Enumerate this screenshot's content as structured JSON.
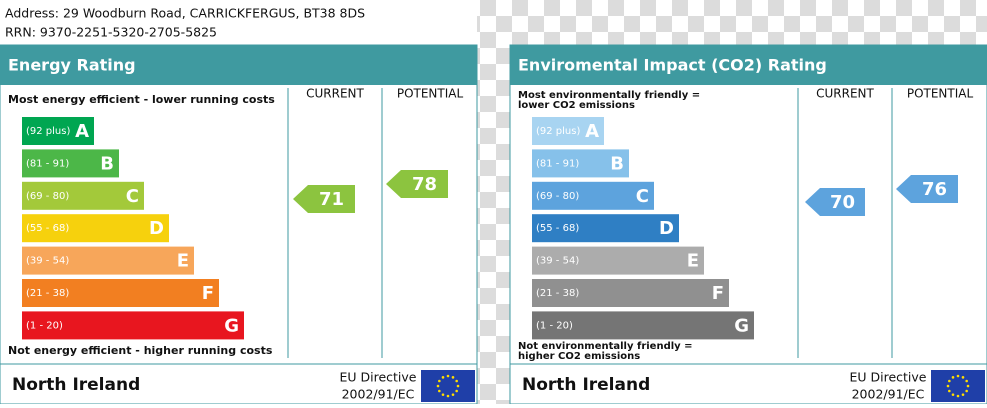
{
  "header": {
    "address": "Address: 29 Woodburn Road, CARRICKFERGUS, BT38 8DS",
    "rrn": "RRN: 9370-2251-5320-2705-5825"
  },
  "panels": [
    {
      "title": "Energy Rating",
      "top_label": [
        "Most energy efficient - lower running costs"
      ],
      "bottom_label": [
        "Not energy efficient - higher running costs"
      ],
      "current_heading": "CURRENT",
      "potential_heading": "POTENTIAL",
      "bands": [
        {
          "range": "(92 plus)",
          "letter": "A",
          "color": "#00a651"
        },
        {
          "range": "(81 - 91)",
          "letter": "B",
          "color": "#4cb748"
        },
        {
          "range": "(69 - 80)",
          "letter": "C",
          "color": "#a3c93a"
        },
        {
          "range": "(55 - 68)",
          "letter": "D",
          "color": "#f6d10d"
        },
        {
          "range": "(39 - 54)",
          "letter": "E",
          "color": "#f7a65a"
        },
        {
          "range": "(21 - 38)",
          "letter": "F",
          "color": "#f27f21"
        },
        {
          "range": "(1 - 20)",
          "letter": "G",
          "color": "#e8161f"
        }
      ],
      "current": "71",
      "current_color": "#8cc43f",
      "potential": "78",
      "potential_color": "#8cc43f",
      "footer": {
        "region": "North Ireland",
        "directive": [
          "EU Directive",
          "2002/91/EC"
        ]
      }
    },
    {
      "title": "Enviromental Impact (CO2) Rating",
      "top_label": [
        "Most environmentally friendly =",
        "lower CO2 emissions"
      ],
      "bottom_label": [
        "Not environmentally friendly =",
        "higher CO2 emissions"
      ],
      "current_heading": "CURRENT",
      "potential_heading": "POTENTIAL",
      "bands": [
        {
          "range": "(92 plus)",
          "letter": "A",
          "color": "#a8d4f1"
        },
        {
          "range": "(81 - 91)",
          "letter": "B",
          "color": "#86c1ea"
        },
        {
          "range": "(69 - 80)",
          "letter": "C",
          "color": "#5da3dd"
        },
        {
          "range": "(55 - 68)",
          "letter": "D",
          "color": "#2f7fc4"
        },
        {
          "range": "(39 - 54)",
          "letter": "E",
          "color": "#acacac"
        },
        {
          "range": "(21 - 38)",
          "letter": "F",
          "color": "#909090"
        },
        {
          "range": "(1 - 20)",
          "letter": "G",
          "color": "#757575"
        }
      ],
      "current": "70",
      "current_color": "#5da3dd",
      "potential": "76",
      "potential_color": "#5da3dd",
      "footer": {
        "region": "North Ireland",
        "directive": [
          "EU Directive",
          "2002/91/EC"
        ]
      }
    }
  ]
}
